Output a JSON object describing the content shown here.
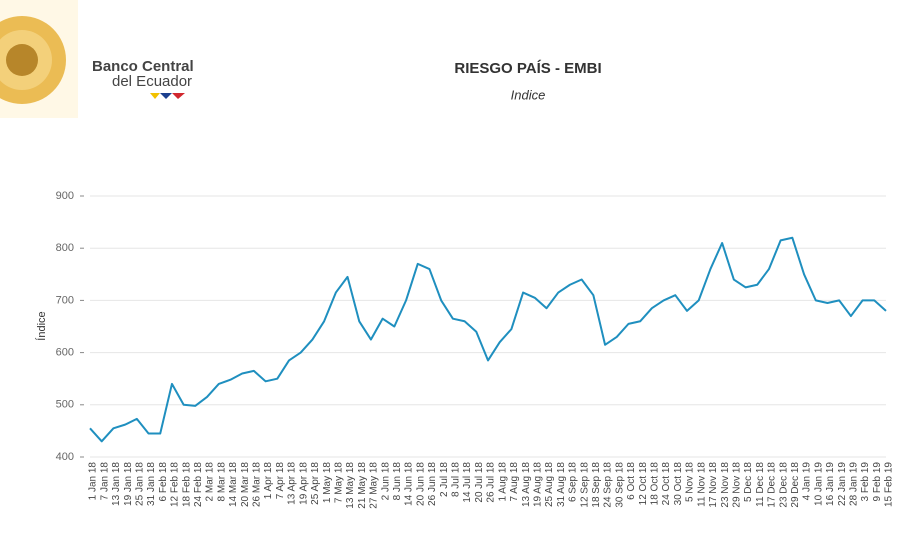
{
  "header": {
    "brand_line1": "Banco Central",
    "brand_line2": "del Ecuador"
  },
  "chart_data": {
    "type": "line",
    "title": "RIESGO PAÍS - EMBI",
    "subtitle": "Indice",
    "y_label": "Índice",
    "categories": [
      "1 Jan 18",
      "7 Jan 18",
      "13 Jan 18",
      "19 Jan 18",
      "25 Jan 18",
      "31 Jan 18",
      "6 Feb 18",
      "12 Feb 18",
      "18 Feb 18",
      "24 Feb 18",
      "2 Mar 18",
      "8 Mar 18",
      "14 Mar 18",
      "20 Mar 18",
      "26 Mar 18",
      "1 Apr 18",
      "7 Apr 18",
      "13 Apr 18",
      "19 Apr 18",
      "25 Apr 18",
      "1 May 18",
      "7 May 18",
      "13 May 18",
      "21 May 18",
      "27 May 18",
      "2 Jun 18",
      "8 Jun 18",
      "14 Jun 18",
      "20 Jun 18",
      "26 Jun 18",
      "2 Jul 18",
      "8 Jul 18",
      "14 Jul 18",
      "20 Jul 18",
      "26 Jul 18",
      "1 Aug 18",
      "7 Aug 18",
      "13 Aug 18",
      "19 Aug 18",
      "25 Aug 18",
      "31 Aug 18",
      "6 Sep 18",
      "12 Sep 18",
      "18 Sep 18",
      "24 Sep 18",
      "30 Sep 18",
      "6 Oct 18",
      "12 Oct 18",
      "18 Oct 18",
      "24 Oct 18",
      "30 Oct 18",
      "5 Nov 18",
      "11 Nov 18",
      "17 Nov 18",
      "23 Nov 18",
      "29 Nov 18",
      "5 Dec 18",
      "11 Dec 18",
      "17 Dec 18",
      "23 Dec 18",
      "29 Dec 18",
      "4 Jan 19",
      "10 Jan 19",
      "16 Jan 19",
      "22 Jan 19",
      "28 Jan 19",
      "3 Feb 19",
      "9 Feb 19",
      "15 Feb 19"
    ],
    "values": [
      455,
      430,
      455,
      462,
      473,
      445,
      445,
      540,
      500,
      498,
      515,
      540,
      548,
      560,
      565,
      545,
      550,
      585,
      600,
      625,
      660,
      715,
      745,
      660,
      625,
      665,
      650,
      700,
      770,
      760,
      700,
      665,
      660,
      640,
      585,
      620,
      645,
      715,
      705,
      685,
      715,
      730,
      740,
      710,
      615,
      630,
      655,
      660,
      685,
      700,
      710,
      680,
      700,
      760,
      810,
      740,
      725,
      730,
      760,
      815,
      820,
      750,
      700,
      695,
      700,
      670,
      700,
      700,
      680
    ],
    "color": "#1f8fbf",
    "ylim": [
      400,
      900
    ],
    "yticks": [
      400,
      500,
      600,
      700,
      800,
      900
    ],
    "grid": true
  }
}
